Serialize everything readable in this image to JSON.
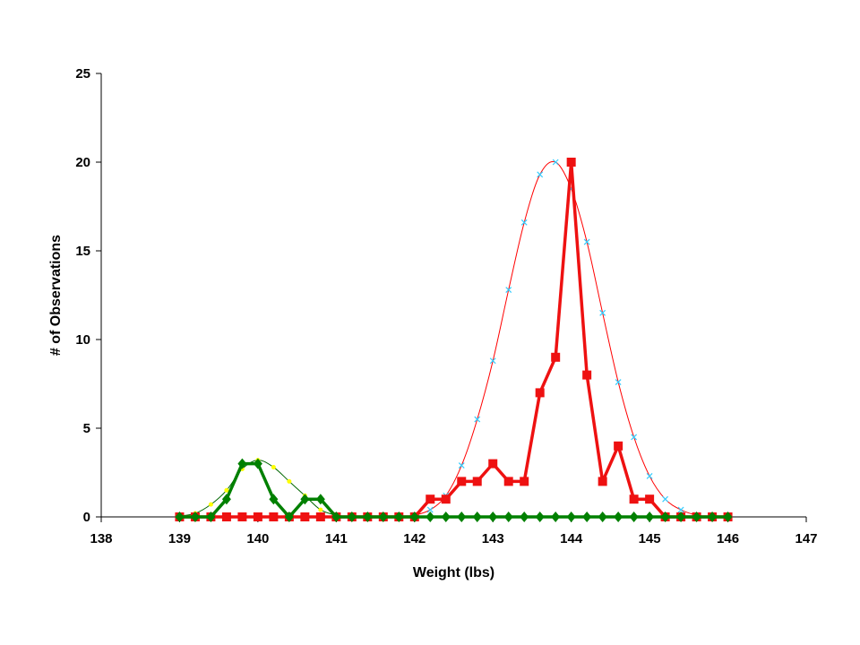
{
  "chart_data": {
    "type": "line",
    "title": "",
    "xlabel": "Weight (lbs)",
    "ylabel": "# of Observations",
    "xlim": [
      138,
      147
    ],
    "ylim": [
      0,
      25
    ],
    "x_ticks": [
      "138",
      "139",
      "140",
      "141",
      "142",
      "143",
      "144",
      "145",
      "146",
      "147"
    ],
    "y_ticks": [
      "0",
      "5",
      "10",
      "15",
      "20",
      "25"
    ],
    "grid": false,
    "legend": "none",
    "x": [
      139.0,
      139.2,
      139.4,
      139.6,
      139.8,
      140.0,
      140.2,
      140.4,
      140.6,
      140.8,
      141.0,
      141.2,
      141.4,
      141.6,
      141.8,
      142.0,
      142.2,
      142.4,
      142.6,
      142.8,
      143.0,
      143.2,
      143.4,
      143.6,
      143.8,
      144.0,
      144.2,
      144.4,
      144.6,
      144.8,
      145.0,
      145.2,
      145.4,
      145.6,
      145.8,
      146.0
    ],
    "series": [
      {
        "color": "#ff0000",
        "style": "thin-curve",
        "marker": "x",
        "marker_color": "#33ccff",
        "values": [
          0,
          0,
          0,
          0,
          0,
          0,
          0,
          0,
          0,
          0,
          0,
          0,
          0,
          0,
          0,
          0.1,
          0.4,
          1.2,
          2.9,
          5.5,
          8.8,
          12.8,
          16.6,
          19.3,
          20.0,
          18.5,
          15.5,
          11.5,
          7.6,
          4.5,
          2.3,
          1.0,
          0.4,
          0.1,
          0,
          0
        ]
      },
      {
        "color": "#006600",
        "style": "thin-curve",
        "marker": "dot",
        "marker_color": "#ffff00",
        "values": [
          0.05,
          0.2,
          0.7,
          1.5,
          2.7,
          3.2,
          2.8,
          2.0,
          1.2,
          0.4,
          0.1,
          0,
          0,
          0,
          0,
          0,
          0,
          0,
          0,
          0,
          0,
          0,
          0,
          0,
          0,
          0,
          0,
          0,
          0,
          0,
          0,
          0,
          0,
          0,
          0,
          0
        ]
      },
      {
        "color": "#ee1111",
        "style": "thick",
        "marker": "square",
        "marker_color": "#ee1111",
        "values": [
          0,
          0,
          0,
          0,
          0,
          0,
          0,
          0,
          0,
          0,
          0,
          0,
          0,
          0,
          0,
          0,
          1,
          1,
          2,
          2,
          3,
          2,
          2,
          7,
          9,
          20,
          8,
          2,
          4,
          1,
          1,
          0,
          0,
          0,
          0,
          0
        ]
      },
      {
        "color": "#008000",
        "style": "thick",
        "marker": "diamond",
        "marker_color": "#008000",
        "values": [
          0,
          0,
          0,
          1,
          3,
          3,
          1,
          0,
          1,
          1,
          0,
          0,
          0,
          0,
          0,
          0,
          0,
          0,
          0,
          0,
          0,
          0,
          0,
          0,
          0,
          0,
          0,
          0,
          0,
          0,
          0,
          0,
          0,
          0,
          0,
          0
        ]
      }
    ]
  }
}
